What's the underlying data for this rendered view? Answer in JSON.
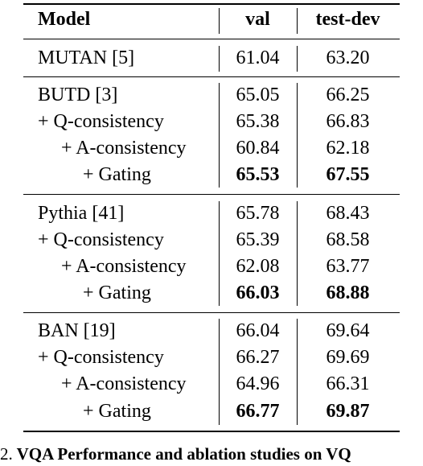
{
  "table": {
    "header": {
      "model": "Model",
      "val": "val",
      "test_dev": "test-dev"
    },
    "groups": [
      {
        "rows": [
          {
            "model": "MUTAN [5]",
            "val": "61.04",
            "test_dev": "63.20"
          }
        ]
      },
      {
        "rows": [
          {
            "model": "BUTD [3]",
            "val": "65.05",
            "test_dev": "66.25"
          },
          {
            "model": "+ Q-consistency",
            "val": "65.38",
            "test_dev": "66.83"
          },
          {
            "model": "+ A-consistency",
            "val": "60.84",
            "test_dev": "62.18"
          },
          {
            "model": "+ Gating",
            "val": "65.53",
            "test_dev": "67.55",
            "bold": true
          }
        ]
      },
      {
        "rows": [
          {
            "model": "Pythia [41]",
            "val": "65.78",
            "test_dev": "68.43"
          },
          {
            "model": "+ Q-consistency",
            "val": "65.39",
            "test_dev": "68.58"
          },
          {
            "model": "+ A-consistency",
            "val": "62.08",
            "test_dev": "63.77"
          },
          {
            "model": "+ Gating",
            "val": "66.03",
            "test_dev": "68.88",
            "bold": true
          }
        ]
      },
      {
        "rows": [
          {
            "model": "BAN [19]",
            "val": "66.04",
            "test_dev": "69.64"
          },
          {
            "model": "+ Q-consistency",
            "val": "66.27",
            "test_dev": "69.69"
          },
          {
            "model": "+ A-consistency",
            "val": "64.96",
            "test_dev": "66.31"
          },
          {
            "model": "+ Gating",
            "val": "66.77",
            "test_dev": "69.87",
            "bold": true
          }
        ]
      }
    ]
  },
  "caption": {
    "number": "2.",
    "text": "VQA Performance and ablation studies on VQ"
  }
}
